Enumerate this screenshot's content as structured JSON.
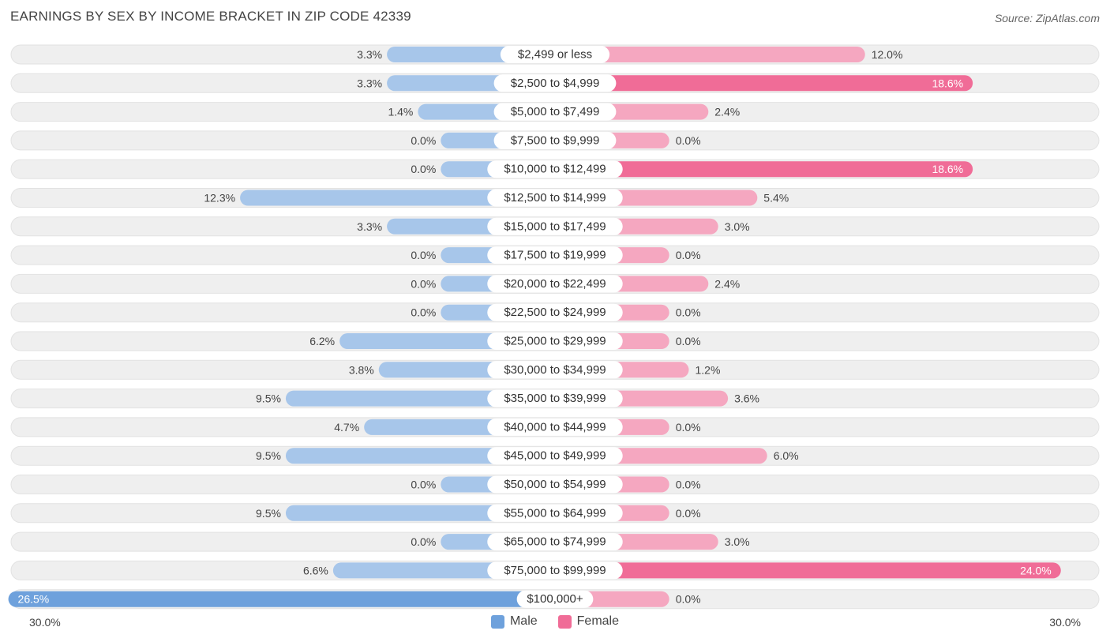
{
  "title": "EARNINGS BY SEX BY INCOME BRACKET IN ZIP CODE 42339",
  "source": "Source: ZipAtlas.com",
  "colors": {
    "male": "#6ea1dc",
    "male_light": "#a7c6ea",
    "female": "#f06c97",
    "female_light": "#f5a7c0",
    "row_bg": "#efefef",
    "row_border": "#e2e2e2"
  },
  "chart_data": {
    "type": "bar",
    "orientation": "horizontal-diverging",
    "title": "EARNINGS BY SEX BY INCOME BRACKET IN ZIP CODE 42339",
    "categories": [
      "$2,499 or less",
      "$2,500 to $4,999",
      "$5,000 to $7,499",
      "$7,500 to $9,999",
      "$10,000 to $12,499",
      "$12,500 to $14,999",
      "$15,000 to $17,499",
      "$17,500 to $19,999",
      "$20,000 to $22,499",
      "$22,500 to $24,999",
      "$25,000 to $29,999",
      "$30,000 to $34,999",
      "$35,000 to $39,999",
      "$40,000 to $44,999",
      "$45,000 to $49,999",
      "$50,000 to $54,999",
      "$55,000 to $64,999",
      "$65,000 to $74,999",
      "$75,000 to $99,999",
      "$100,000+"
    ],
    "series": [
      {
        "name": "Male",
        "values": [
          3.3,
          3.3,
          1.4,
          0.0,
          0.0,
          12.3,
          3.3,
          0.0,
          0.0,
          0.0,
          6.2,
          3.8,
          9.5,
          4.7,
          9.5,
          0.0,
          9.5,
          0.0,
          6.6,
          26.5
        ],
        "labels": [
          "3.3%",
          "3.3%",
          "1.4%",
          "0.0%",
          "0.0%",
          "12.3%",
          "3.3%",
          "0.0%",
          "0.0%",
          "0.0%",
          "6.2%",
          "3.8%",
          "9.5%",
          "4.7%",
          "9.5%",
          "0.0%",
          "9.5%",
          "0.0%",
          "6.6%",
          "26.5%"
        ]
      },
      {
        "name": "Female",
        "values": [
          12.0,
          18.6,
          2.4,
          0.0,
          18.6,
          5.4,
          3.0,
          0.0,
          2.4,
          0.0,
          0.0,
          1.2,
          3.6,
          0.0,
          6.0,
          0.0,
          0.0,
          3.0,
          24.0,
          0.0
        ],
        "labels": [
          "12.0%",
          "18.6%",
          "2.4%",
          "0.0%",
          "18.6%",
          "5.4%",
          "3.0%",
          "0.0%",
          "2.4%",
          "0.0%",
          "0.0%",
          "1.2%",
          "3.6%",
          "0.0%",
          "6.0%",
          "0.0%",
          "0.0%",
          "3.0%",
          "24.0%",
          "0.0%"
        ]
      }
    ],
    "xlim": [
      -30,
      30
    ],
    "axis_left_label": "30.0%",
    "axis_right_label": "30.0%",
    "legend": [
      "Male",
      "Female"
    ],
    "legend_position": "bottom-center"
  }
}
